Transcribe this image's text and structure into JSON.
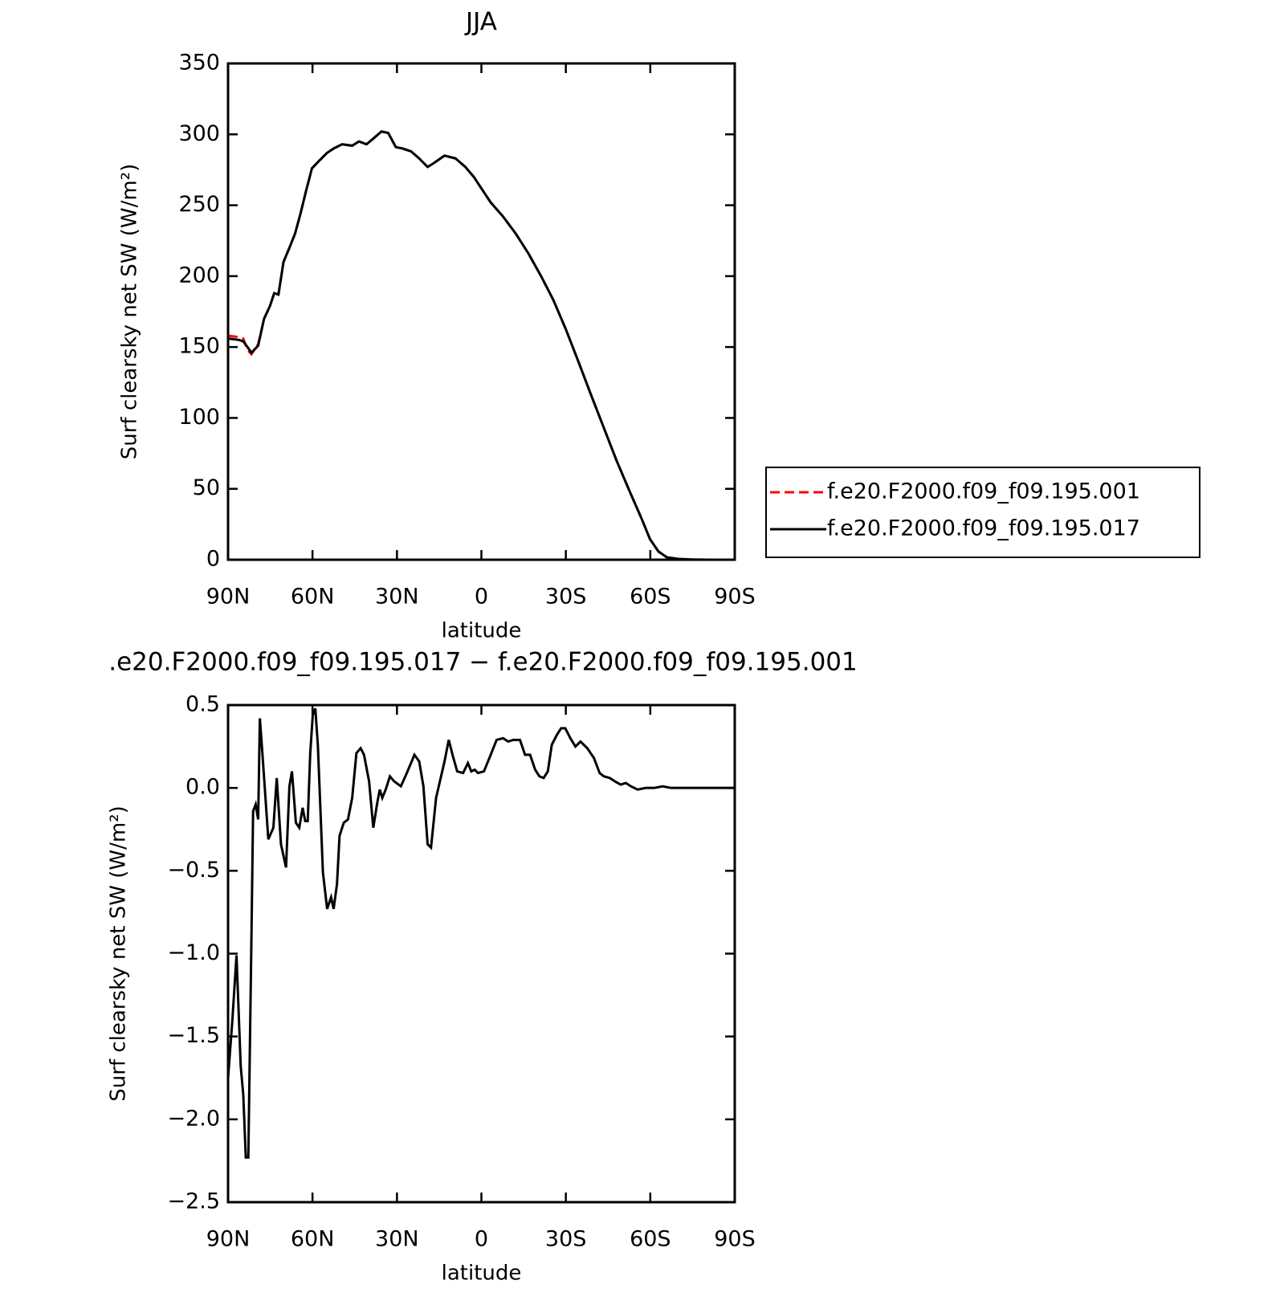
{
  "chart_data": [
    {
      "type": "line",
      "title": "JJA",
      "xlabel": "latitude",
      "ylabel": "Surf clearsky net SW (W/m²)",
      "xlim": [
        90,
        -90
      ],
      "xticks": [
        {
          "value": 90,
          "label": "90N"
        },
        {
          "value": 60,
          "label": "60N"
        },
        {
          "value": 30,
          "label": "30N"
        },
        0,
        {
          "value": -30,
          "label": "30S"
        },
        {
          "value": -60,
          "label": "60S"
        },
        {
          "value": -90,
          "label": "90S"
        }
      ],
      "ylim": [
        0,
        350
      ],
      "yticks": [
        0,
        50,
        100,
        150,
        200,
        250,
        300,
        350
      ],
      "legend": "right",
      "x": [
        90,
        86.1,
        84.6,
        83.1,
        81.7,
        79.3,
        77.2,
        75.1,
        73.6,
        72.1,
        70.3,
        68.2,
        66.2,
        64.4,
        62.3,
        60.2,
        57.8,
        54.8,
        52.5,
        49.5,
        45.9,
        43.5,
        40.8,
        38.4,
        35.5,
        33.1,
        30.4,
        28.0,
        25.0,
        22.1,
        19.1,
        16.7,
        13.1,
        9.2,
        5.7,
        2.7,
        -0.3,
        -3.3,
        -7.7,
        -12.2,
        -16.7,
        -21.2,
        -25.6,
        -30.1,
        -34.6,
        -39.0,
        -43.5,
        -48.0,
        -52.5,
        -56.9,
        -59.9,
        -62.9,
        -65.9,
        -70.3,
        -76.3,
        -80.8,
        -90
      ],
      "series": [
        {
          "name": "f.e20.F2000.f09_f09.195.001",
          "color": "#ff0000",
          "dashed": true,
          "values": [
            158,
            157,
            156,
            148,
            145,
            152,
            170,
            179,
            188,
            187,
            210,
            220,
            230,
            243,
            260,
            276,
            281,
            287,
            290,
            293,
            292,
            295,
            293,
            297,
            302,
            301,
            291,
            290,
            288,
            283,
            277,
            280,
            285,
            283,
            277,
            270,
            261,
            252,
            242,
            230,
            216,
            200,
            183,
            162,
            139,
            116,
            93,
            70,
            49,
            29,
            14.5,
            5.8,
            1.7,
            0.5,
            0.1,
            0,
            0
          ]
        },
        {
          "name": "f.e20.F2000.f09_f09.195.017",
          "color": "#000000",
          "dashed": false,
          "values": [
            156,
            155,
            154,
            150,
            146,
            151,
            170,
            179,
            188,
            187,
            210,
            220,
            230,
            243,
            260,
            276,
            281,
            287,
            290,
            293,
            292,
            295,
            293,
            297,
            302,
            301,
            291,
            290,
            288,
            283,
            277,
            280,
            285,
            283,
            277,
            270,
            261,
            252,
            242,
            230,
            216,
            200,
            183,
            162,
            139,
            116,
            93,
            70,
            49,
            29,
            14.5,
            5.8,
            1.7,
            0.5,
            0.1,
            0,
            0
          ]
        }
      ]
    },
    {
      "type": "line",
      "title": ".e20.F2000.f09_f09.195.017 − f.e20.F2000.f09_f09.195.001",
      "xlabel": "latitude",
      "ylabel": "Surf clearsky net SW (W/m²)",
      "xlim": [
        90,
        -90
      ],
      "xticks": [
        {
          "value": 90,
          "label": "90N"
        },
        {
          "value": 60,
          "label": "60N"
        },
        {
          "value": 30,
          "label": "30N"
        },
        0,
        {
          "value": -30,
          "label": "30S"
        },
        {
          "value": -60,
          "label": "60S"
        },
        {
          "value": -90,
          "label": "90S"
        }
      ],
      "ylim": [
        -2.5,
        0.5
      ],
      "yticks": [
        {
          "value": -2.5,
          "label": "−2.5"
        },
        {
          "value": -2.0,
          "label": "−2.0"
        },
        {
          "value": -1.5,
          "label": "−1.5"
        },
        {
          "value": -1.0,
          "label": "−1.0"
        },
        {
          "value": -0.5,
          "label": "−0.5"
        },
        {
          "value": 0,
          "label": "0.0"
        },
        0.5
      ],
      "x": [
        90,
        88.5,
        87.0,
        85.5,
        84.6,
        83.7,
        82.8,
        81.7,
        81.1,
        80.2,
        79.3,
        78.7,
        77.8,
        75.7,
        73.9,
        72.7,
        71.2,
        69.4,
        68.2,
        67.3,
        65.9,
        64.7,
        63.5,
        62.6,
        61.7,
        60.8,
        59.9,
        59.0,
        58.1,
        56.3,
        54.8,
        53.4,
        52.5,
        51.3,
        50.4,
        48.9,
        47.4,
        45.9,
        44.4,
        42.9,
        41.7,
        39.9,
        38.4,
        37.0,
        36.1,
        35.2,
        34.0,
        32.5,
        31.0,
        28.6,
        26.5,
        25.0,
        23.8,
        22.1,
        20.6,
        19.1,
        17.9,
        16.1,
        14.6,
        13.1,
        11.6,
        10.1,
        8.6,
        6.5,
        4.8,
        3.6,
        2.4,
        1.2,
        -0.9,
        -3.3,
        -5.4,
        -7.7,
        -9.5,
        -11.3,
        -13.7,
        -15.5,
        -17.3,
        -19.1,
        -20.6,
        -22.1,
        -23.6,
        -25.0,
        -26.8,
        -28.3,
        -29.8,
        -31.6,
        -33.4,
        -35.2,
        -37.6,
        -40.0,
        -42.0,
        -43.5,
        -45.6,
        -47.4,
        -49.5,
        -51.3,
        -53.1,
        -55.5,
        -58.4,
        -61.4,
        -64.4,
        -67.4,
        -71.9,
        -90
      ],
      "series": [
        {
          "color": "#000000",
          "dashed": false,
          "values": [
            -1.75,
            -1.41,
            -1.01,
            -1.68,
            -1.85,
            -2.23,
            -2.23,
            -0.91,
            -0.14,
            -0.1,
            -0.19,
            0.42,
            0.21,
            -0.31,
            -0.24,
            0.06,
            -0.34,
            -0.48,
            0.01,
            0.1,
            -0.21,
            -0.24,
            -0.12,
            -0.2,
            -0.2,
            0.21,
            0.44,
            0.48,
            0.26,
            -0.51,
            -0.73,
            -0.66,
            -0.73,
            -0.58,
            -0.29,
            -0.21,
            -0.19,
            -0.06,
            0.21,
            0.24,
            0.2,
            0.04,
            -0.24,
            -0.09,
            -0.01,
            -0.06,
            -0.01,
            0.07,
            0.04,
            0.01,
            0.09,
            0.15,
            0.2,
            0.16,
            0.01,
            -0.34,
            -0.36,
            -0.06,
            0.05,
            0.16,
            0.29,
            0.19,
            0.1,
            0.09,
            0.15,
            0.1,
            0.11,
            0.09,
            0.1,
            0.2,
            0.29,
            0.3,
            0.28,
            0.29,
            0.29,
            0.2,
            0.2,
            0.11,
            0.07,
            0.06,
            0.1,
            0.26,
            0.32,
            0.36,
            0.36,
            0.3,
            0.25,
            0.28,
            0.24,
            0.18,
            0.09,
            0.07,
            0.06,
            0.04,
            0.02,
            0.03,
            0.01,
            -0.01,
            0.0,
            0.0,
            0.01,
            0.0,
            0.0,
            0.0
          ]
        }
      ]
    }
  ]
}
